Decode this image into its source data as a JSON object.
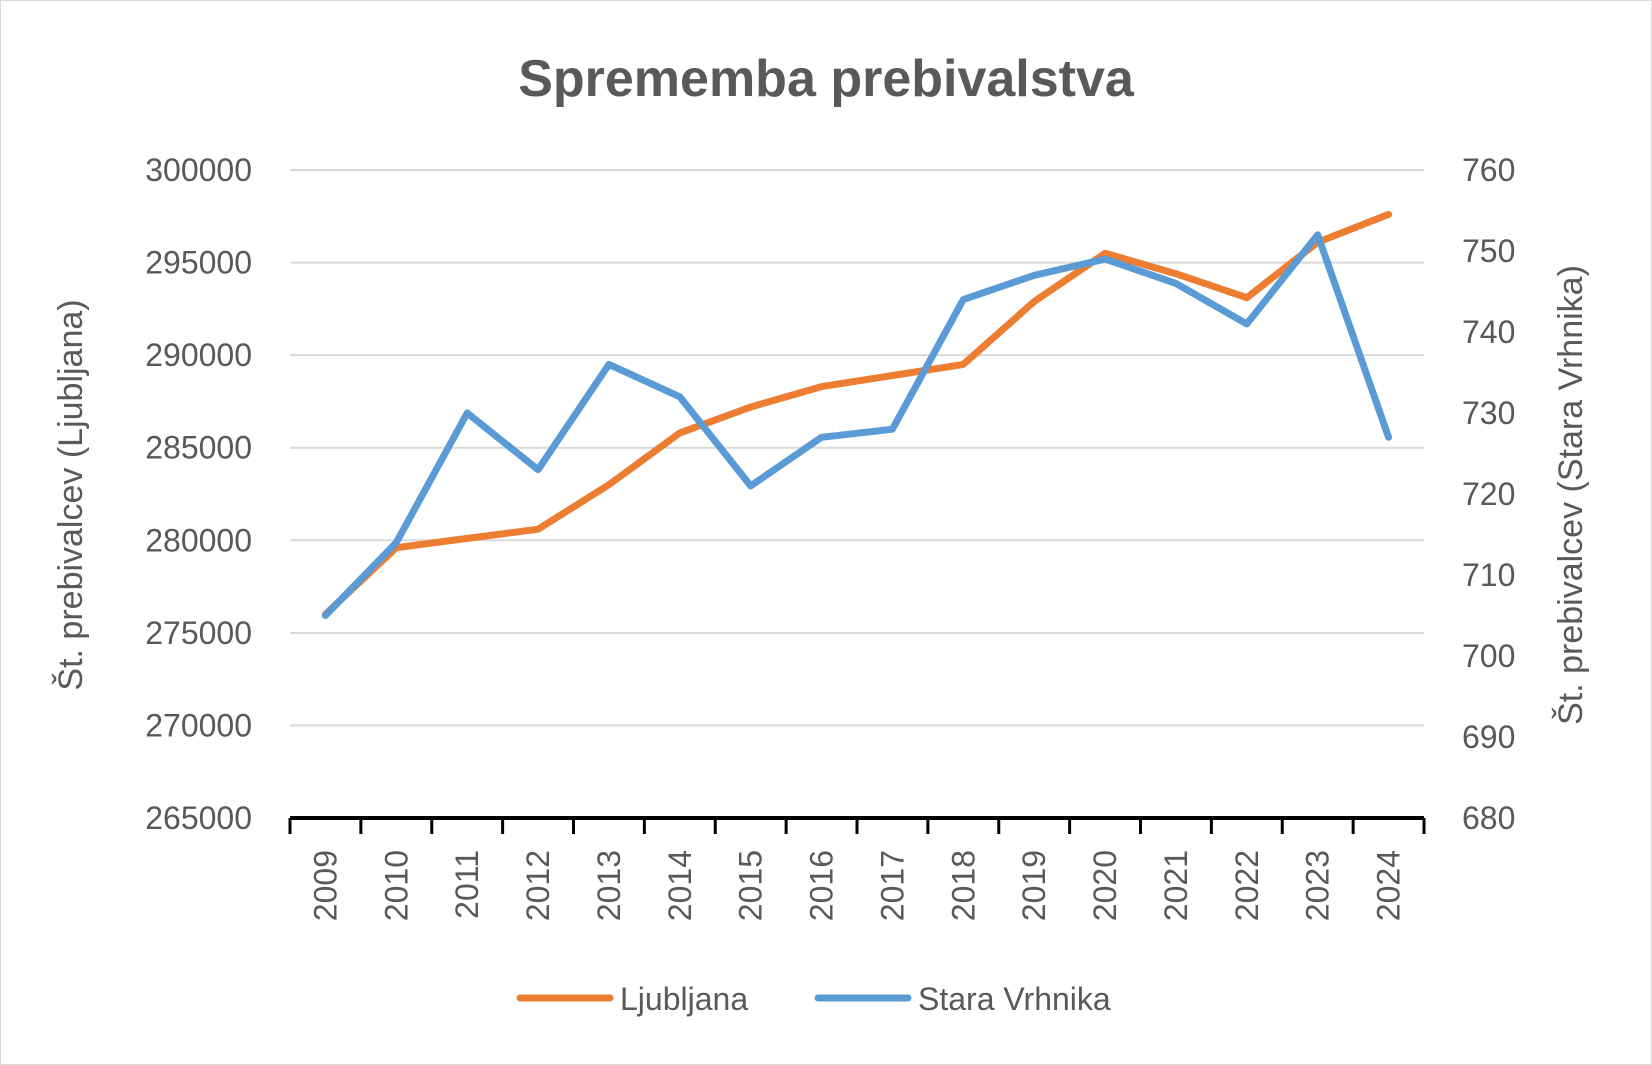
{
  "chart_data": {
    "type": "line",
    "title": "Sprememba prebivalstva",
    "xlabel": "",
    "ylabel": "Št. prebivalcev (Ljubljana)",
    "y2label": "Št. prebivalcev (Stara Vrhnika)",
    "categories": [
      "2009",
      "2010",
      "2011",
      "2012",
      "2013",
      "2014",
      "2015",
      "2016",
      "2017",
      "2018",
      "2019",
      "2020",
      "2021",
      "2022",
      "2023",
      "2024"
    ],
    "ylim": [
      265000,
      300000
    ],
    "yticks": [
      265000,
      270000,
      275000,
      280000,
      285000,
      290000,
      295000,
      300000
    ],
    "y2lim": [
      680,
      760
    ],
    "y2ticks": [
      680,
      690,
      700,
      710,
      720,
      730,
      740,
      750,
      760
    ],
    "grid": true,
    "legend_position": "bottom",
    "series": [
      {
        "name": "Ljubljana",
        "axis": "left",
        "color": "#ed7d31",
        "values": [
          276000,
          279600,
          280100,
          280600,
          283000,
          285800,
          287200,
          288300,
          288900,
          289500,
          292900,
          295500,
          294400,
          293100,
          296100,
          297600
        ]
      },
      {
        "name": "Stara Vrhnika",
        "axis": "right",
        "color": "#5b9bd5",
        "values": [
          705,
          714,
          730,
          723,
          736,
          732,
          721,
          727,
          728,
          744,
          747,
          749,
          746,
          741,
          752,
          727
        ]
      }
    ]
  }
}
